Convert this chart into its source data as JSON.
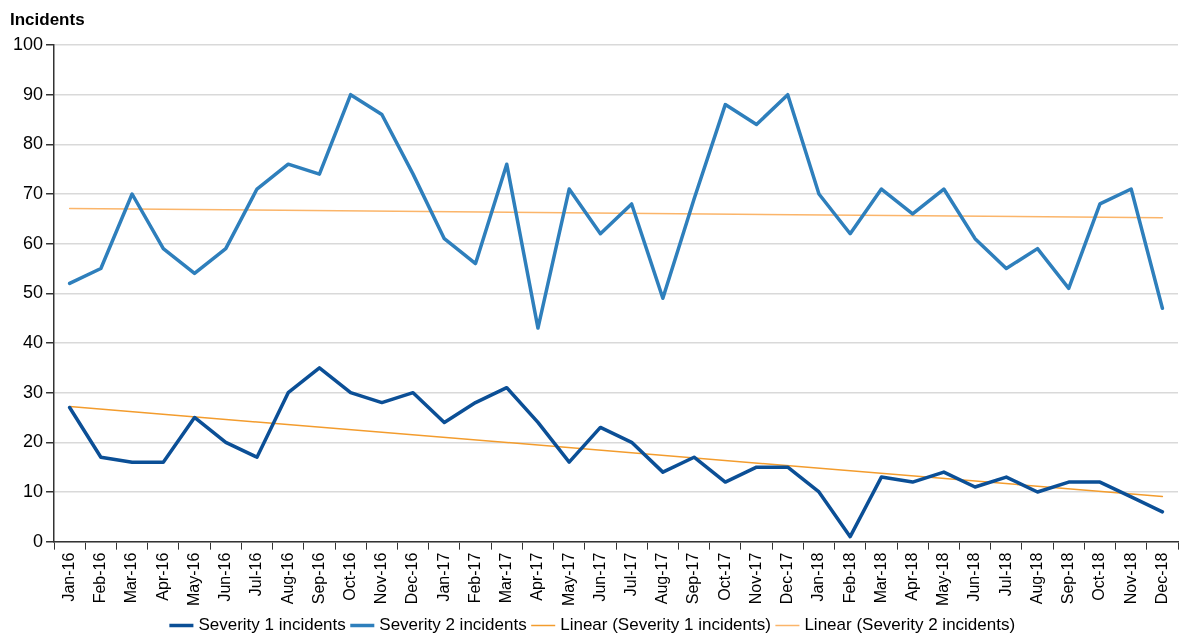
{
  "chart_data": {
    "type": "line",
    "ylabel": "Incidents",
    "categories": [
      "Jan-16",
      "Feb-16",
      "Mar-16",
      "Apr-16",
      "May-16",
      "Jun-16",
      "Jul-16",
      "Aug-16",
      "Sep-16",
      "Oct-16",
      "Nov-16",
      "Dec-16",
      "Jan-17",
      "Feb-17",
      "Mar-17",
      "Apr-17",
      "May-17",
      "Jun-17",
      "Jul-17",
      "Aug-17",
      "Sep-17",
      "Oct-17",
      "Nov-17",
      "Dec-17",
      "Jan-18",
      "Feb-18",
      "Mar-18",
      "Apr-18",
      "May-18",
      "Jun-18",
      "Jul-18",
      "Aug-18",
      "Sep-18",
      "Oct-18",
      "Nov-18",
      "Dec-18"
    ],
    "series": [
      {
        "name": "Severity 1 incidents",
        "color": "#0b4f96",
        "values": [
          27,
          17,
          16,
          16,
          25,
          20,
          17,
          30,
          35,
          30,
          28,
          30,
          24,
          28,
          31,
          24,
          16,
          23,
          20,
          14,
          17,
          12,
          15,
          15,
          10,
          1,
          13,
          12,
          14,
          11,
          13,
          10,
          12,
          12,
          9,
          6
        ]
      },
      {
        "name": "Severity 2 incidents",
        "color": "#2e7fbc",
        "values": [
          52,
          55,
          70,
          59,
          54,
          59,
          71,
          76,
          74,
          90,
          86,
          74,
          61,
          56,
          76,
          43,
          71,
          62,
          68,
          49,
          69,
          88,
          84,
          90,
          70,
          62,
          71,
          66,
          71,
          61,
          55,
          59,
          51,
          68,
          71,
          47
        ]
      },
      {
        "name": "Linear (Severity 1 incidents)",
        "color": "#f39c2d",
        "x": [
          "Jan-16",
          "Dec-18"
        ],
        "values": [
          27.2,
          9.1
        ]
      },
      {
        "name": "Linear (Severity 2 incidents)",
        "color": "#fbb56a",
        "x": [
          "Jan-16",
          "Dec-18"
        ],
        "values": [
          67.1,
          65.2
        ]
      }
    ],
    "ylim": [
      0,
      100
    ],
    "yticks": [
      0,
      10,
      20,
      30,
      40,
      50,
      60,
      70,
      80,
      90,
      100
    ],
    "grid": "y",
    "legend": "bottom",
    "marker": "none",
    "line_style": "solid"
  }
}
